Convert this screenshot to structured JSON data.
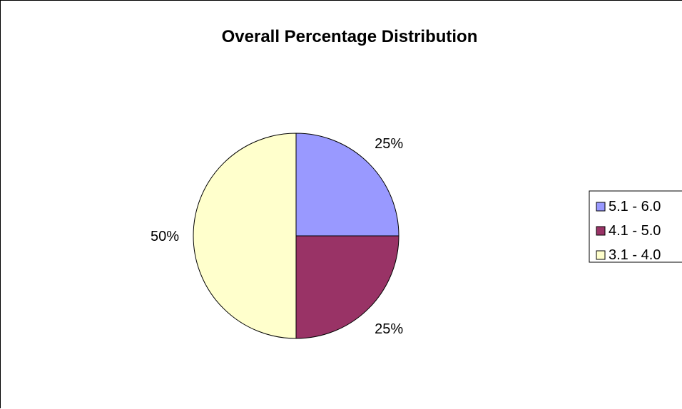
{
  "chart_data": {
    "type": "pie",
    "title": "Overall Percentage Distribution",
    "categories": [
      "5.1 - 6.0",
      "4.1 - 5.0",
      "3.1 - 4.0"
    ],
    "values": [
      25,
      25,
      50
    ],
    "data_labels": [
      "25%",
      "25%",
      "50%"
    ],
    "colors": [
      "#9999ff",
      "#993366",
      "#ffffcc"
    ],
    "start_angle": "12 o'clock",
    "direction": "clockwise",
    "legend_position": "right"
  }
}
